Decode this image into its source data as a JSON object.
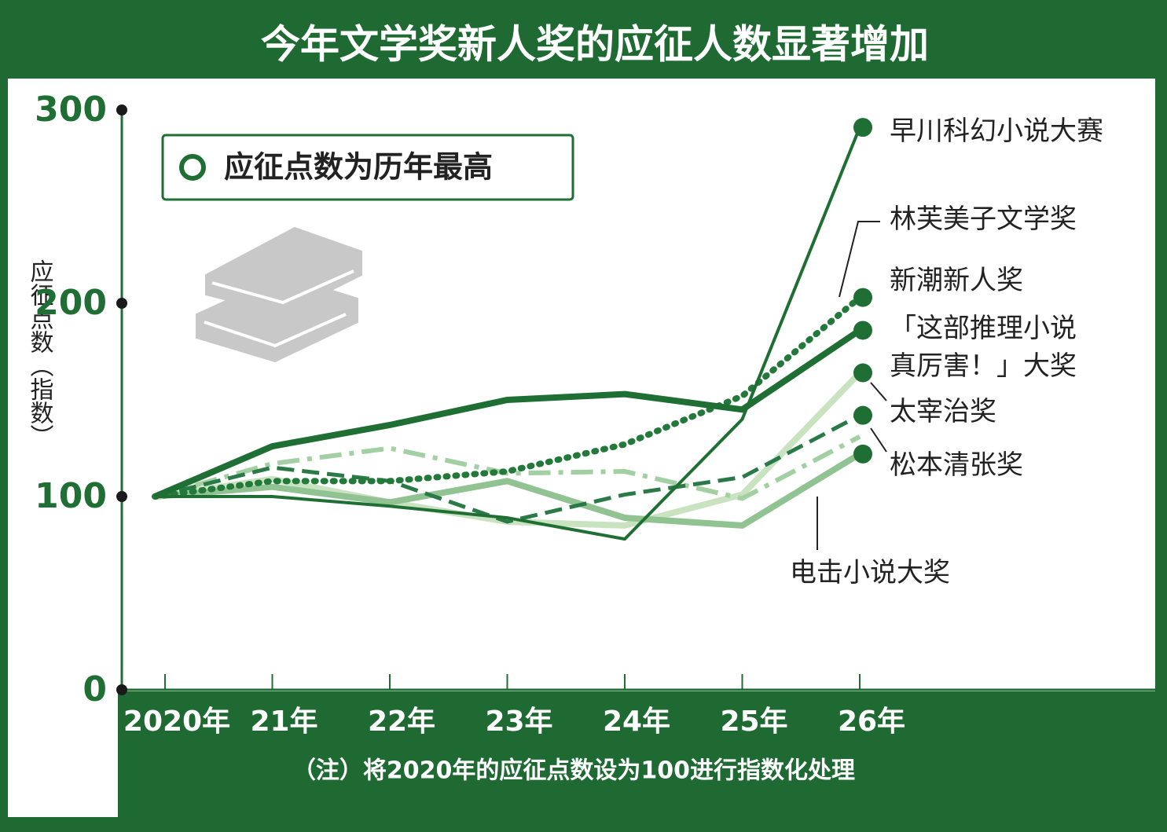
{
  "chart_data": {
    "type": "line",
    "title": "今年文学奖新人奖的应征人数显著增加",
    "y_label": "应征点数（指数）",
    "legend_label": "应征点数为历年最高",
    "note": "（注）将2020年的应征点数设为100进行指数化处理",
    "categories": [
      "2020年",
      "21年",
      "22年",
      "23年",
      "24年",
      "25年",
      "26年"
    ],
    "ylim": [
      0,
      300
    ],
    "yticks": [
      0,
      100,
      200,
      300
    ],
    "series": [
      {
        "name": "早川科幻小说大赛",
        "color": "#1f6e33",
        "style": "solid-thin",
        "marker": true,
        "values": [
          100,
          100,
          95,
          89,
          78,
          140,
          291
        ]
      },
      {
        "name": "林芙美子文学奖",
        "color": "#23793a",
        "style": "dotted",
        "marker": true,
        "values": [
          100,
          108,
          108,
          113,
          127,
          152,
          203
        ]
      },
      {
        "name": "新潮新人奖",
        "color": "#1f6e33",
        "style": "solid-thick",
        "marker": true,
        "values": [
          100,
          126,
          137,
          150,
          153,
          145,
          186
        ]
      },
      {
        "name": "「这部推理小说真厉害！」大奖",
        "color": "#c9e3c1",
        "style": "solid-thick",
        "marker": true,
        "values": [
          100,
          109,
          97,
          87,
          85,
          101,
          164
        ]
      },
      {
        "name": "太宰治奖",
        "color": "#2a7a48",
        "style": "dashed",
        "marker": true,
        "values": [
          100,
          115,
          108,
          87,
          101,
          110,
          142
        ]
      },
      {
        "name": "松本清张奖",
        "color": "#91c392",
        "style": "solid-thick",
        "marker": true,
        "values": [
          100,
          105,
          97,
          108,
          89,
          85,
          122
        ]
      },
      {
        "name": "电击小说大奖",
        "color": "#a3d0a2",
        "style": "dashdot",
        "marker": false,
        "values": [
          100,
          117,
          125,
          112,
          113,
          99,
          131
        ]
      }
    ]
  }
}
